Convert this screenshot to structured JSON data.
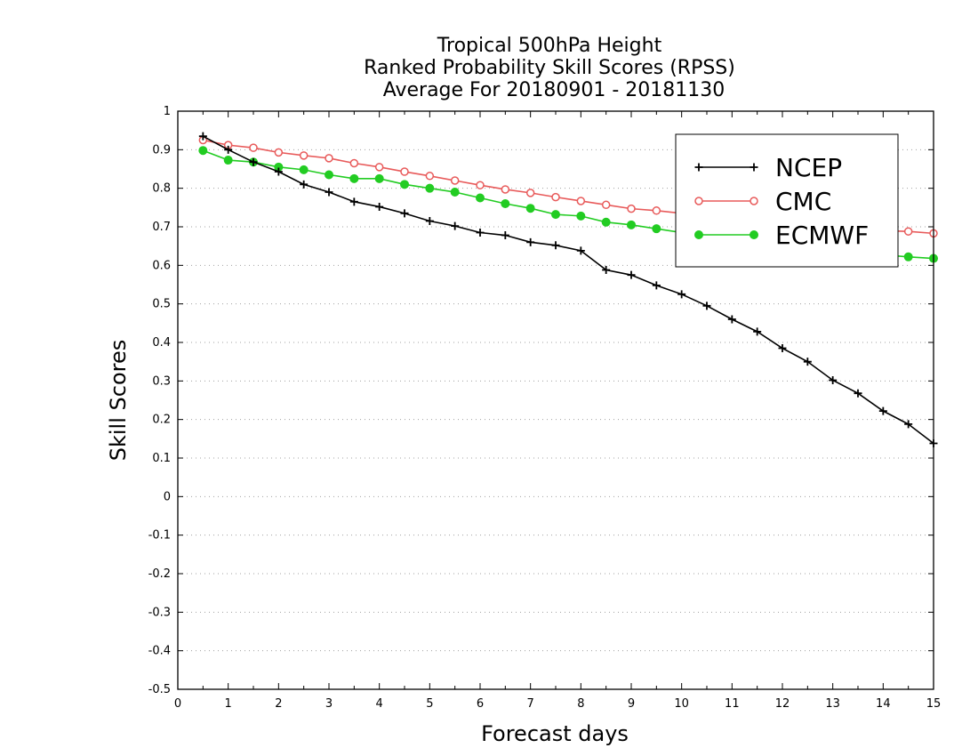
{
  "chart_data": {
    "type": "line",
    "title_lines": [
      "Tropical 500hPa Height",
      "Ranked Probability Skill Scores (RPSS)",
      "Average For 20180901 - 20181130"
    ],
    "xlabel": "Forecast days",
    "ylabel": "Skill Scores",
    "xlim": [
      0,
      15
    ],
    "ylim": [
      -0.5,
      1
    ],
    "xticks": [
      0,
      1,
      2,
      3,
      4,
      5,
      6,
      7,
      8,
      9,
      10,
      11,
      12,
      13,
      14,
      15
    ],
    "yticks": [
      -0.5,
      -0.4,
      -0.3,
      -0.2,
      -0.1,
      0,
      0.1,
      0.2,
      0.3,
      0.4,
      0.5,
      0.6,
      0.7,
      0.8,
      0.9,
      1
    ],
    "ytick_labels": [
      "-0.5",
      "-0.4",
      "-0.3",
      "-0.2",
      "-0.1",
      "0",
      "0.1",
      "0.2",
      "0.3",
      "0.4",
      "0.5",
      "0.6",
      "0.7",
      "0.8",
      "0.9",
      "1"
    ],
    "grid": "horizontal-dotted",
    "legend_placement": "top-right",
    "x": [
      0.5,
      1,
      1.5,
      2,
      2.5,
      3,
      3.5,
      4,
      4.5,
      5,
      5.5,
      6,
      6.5,
      7,
      7.5,
      8,
      8.5,
      9,
      9.5,
      10,
      10.5,
      11,
      11.5,
      12,
      12.5,
      13,
      13.5,
      14,
      14.5,
      15
    ],
    "series": [
      {
        "name": "NCEP",
        "color": "#000000",
        "marker": "plus",
        "values": [
          0.935,
          0.9,
          0.868,
          0.843,
          0.81,
          0.79,
          0.765,
          0.752,
          0.735,
          0.715,
          0.702,
          0.685,
          0.678,
          0.66,
          0.652,
          0.638,
          0.588,
          0.575,
          0.548,
          0.525,
          0.495,
          0.46,
          0.428,
          0.385,
          0.35,
          0.302,
          0.268,
          0.222,
          0.188,
          0.138
        ]
      },
      {
        "name": "CMC",
        "color": "#e85a5a",
        "marker": "open-circle",
        "values": [
          0.925,
          0.912,
          0.905,
          0.893,
          0.885,
          0.878,
          0.865,
          0.855,
          0.843,
          0.832,
          0.82,
          0.808,
          0.797,
          0.788,
          0.777,
          0.767,
          0.757,
          0.747,
          0.742,
          0.735,
          0.728,
          0.722,
          0.716,
          0.71,
          0.705,
          0.7,
          0.695,
          0.69,
          0.688,
          0.683
        ]
      },
      {
        "name": "ECMWF",
        "color": "#22cc22",
        "marker": "filled-circle",
        "values": [
          0.898,
          0.873,
          0.868,
          0.855,
          0.848,
          0.835,
          0.825,
          0.825,
          0.81,
          0.8,
          0.79,
          0.775,
          0.76,
          0.748,
          0.732,
          0.728,
          0.712,
          0.705,
          0.695,
          0.685,
          0.675,
          0.668,
          0.66,
          0.652,
          0.645,
          0.64,
          0.633,
          0.627,
          0.622,
          0.618
        ]
      }
    ]
  }
}
